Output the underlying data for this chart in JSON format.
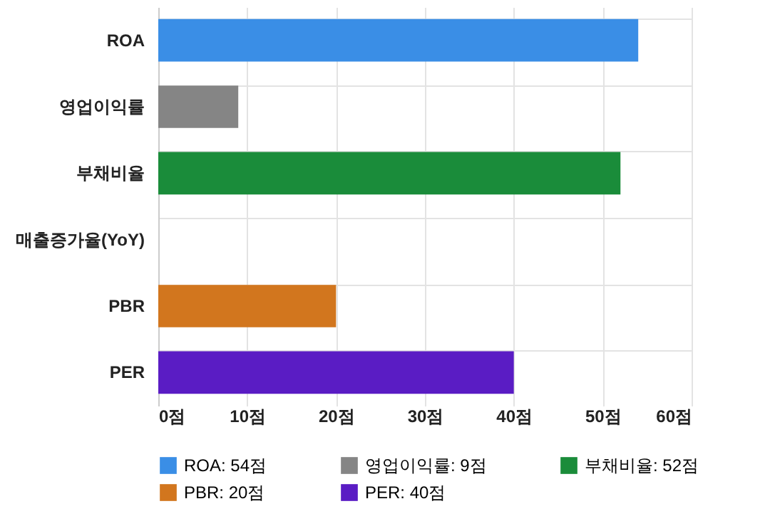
{
  "chart_data": {
    "type": "bar",
    "orientation": "horizontal",
    "categories": [
      "ROA",
      "영업이익률",
      "부채비율",
      "매출증가율(YoY)",
      "PBR",
      "PER"
    ],
    "series": [
      {
        "name": "ROA: 54점",
        "color": "#3a8ee6",
        "values": [
          54,
          null,
          null,
          null,
          null,
          null
        ]
      },
      {
        "name": "영업이익률: 9점",
        "color": "#858585",
        "values": [
          null,
          9,
          null,
          null,
          null,
          null
        ]
      },
      {
        "name": "부채비율: 52점",
        "color": "#1a8c3a",
        "values": [
          null,
          null,
          52,
          null,
          null,
          null
        ]
      },
      {
        "name": "PBR: 20점",
        "color": "#d2761e",
        "values": [
          null,
          null,
          null,
          null,
          20,
          null
        ]
      },
      {
        "name": "PER: 40점",
        "color": "#5a1cc4",
        "values": [
          null,
          null,
          null,
          null,
          null,
          40
        ]
      }
    ],
    "xlim": [
      0,
      60
    ],
    "xticks": [
      {
        "value": 0,
        "label": "0점"
      },
      {
        "value": 10,
        "label": "10점"
      },
      {
        "value": 20,
        "label": "20점"
      },
      {
        "value": 30,
        "label": "30점"
      },
      {
        "value": 40,
        "label": "40점"
      },
      {
        "value": 50,
        "label": "50점"
      },
      {
        "value": 60,
        "label": "60점"
      }
    ],
    "grid": true,
    "legend": "bottom"
  }
}
